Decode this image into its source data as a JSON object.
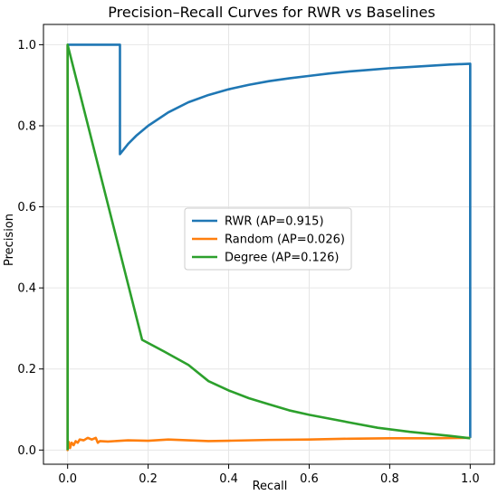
{
  "chart_data": {
    "type": "line",
    "title": "Precision–Recall Curves for RWR vs Baselines",
    "xlabel": "Recall",
    "ylabel": "Precision",
    "xlim": [
      -0.06,
      1.06
    ],
    "ylim": [
      -0.035,
      1.05
    ],
    "xticks": [
      0.0,
      0.2,
      0.4,
      0.6,
      0.8,
      1.0
    ],
    "xtick_labels": [
      "0.0",
      "0.2",
      "0.4",
      "0.6",
      "0.8",
      "1.0"
    ],
    "yticks": [
      0.0,
      0.2,
      0.4,
      0.6,
      0.8,
      1.0
    ],
    "ytick_labels": [
      "0.0",
      "0.2",
      "0.4",
      "0.6",
      "0.8",
      "1.0"
    ],
    "grid": true,
    "legend_position": "center",
    "series": [
      {
        "name": "RWR (AP=0.915)",
        "color": "#1f77b4",
        "x": [
          0.0,
          0.0,
          0.13,
          0.13,
          0.15,
          0.17,
          0.2,
          0.25,
          0.3,
          0.35,
          0.4,
          0.45,
          0.5,
          0.55,
          0.6,
          0.65,
          0.7,
          0.75,
          0.8,
          0.85,
          0.9,
          0.95,
          1.0,
          1.0,
          1.0
        ],
        "y": [
          1.0,
          1.0,
          1.0,
          0.73,
          0.755,
          0.775,
          0.8,
          0.833,
          0.858,
          0.876,
          0.89,
          0.901,
          0.91,
          0.917,
          0.923,
          0.929,
          0.934,
          0.938,
          0.942,
          0.945,
          0.948,
          0.951,
          0.953,
          0.5,
          0.03
        ]
      },
      {
        "name": "Random (AP=0.026)",
        "color": "#ff7f0e",
        "x": [
          0.0,
          0.0,
          0.003,
          0.006,
          0.01,
          0.015,
          0.02,
          0.025,
          0.03,
          0.04,
          0.05,
          0.06,
          0.07,
          0.075,
          0.08,
          0.1,
          0.15,
          0.2,
          0.25,
          0.3,
          0.35,
          0.4,
          0.5,
          0.6,
          0.7,
          0.8,
          0.9,
          1.0
        ],
        "y": [
          1.0,
          0.0,
          0.02,
          0.005,
          0.018,
          0.012,
          0.022,
          0.018,
          0.026,
          0.024,
          0.03,
          0.026,
          0.03,
          0.018,
          0.022,
          0.021,
          0.024,
          0.023,
          0.026,
          0.024,
          0.022,
          0.023,
          0.025,
          0.026,
          0.028,
          0.029,
          0.029,
          0.03
        ]
      },
      {
        "name": "Degree (AP=0.126)",
        "color": "#2ca02c",
        "x": [
          0.0,
          0.0,
          0.185,
          0.24,
          0.3,
          0.35,
          0.4,
          0.45,
          0.5,
          0.55,
          0.6,
          0.7,
          0.77,
          0.85,
          0.95,
          1.0
        ],
        "y": [
          0.0,
          1.0,
          0.272,
          0.243,
          0.21,
          0.17,
          0.147,
          0.128,
          0.113,
          0.098,
          0.087,
          0.068,
          0.055,
          0.045,
          0.035,
          0.029
        ]
      }
    ]
  }
}
